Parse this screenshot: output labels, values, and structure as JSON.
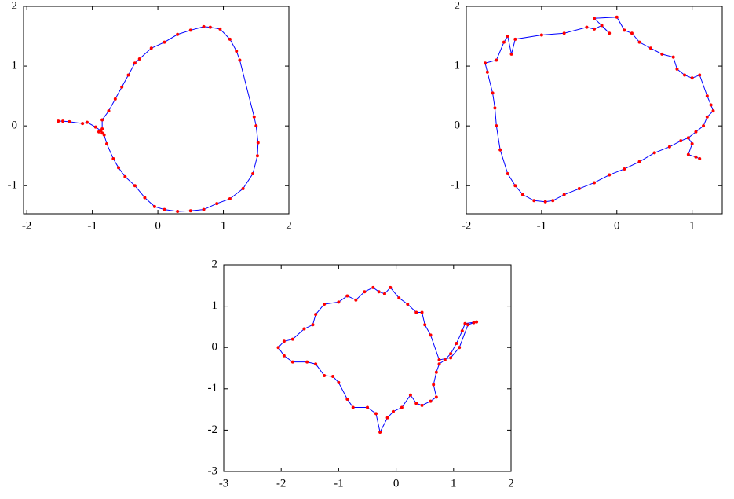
{
  "chart_data": [
    {
      "type": "line",
      "color": "#0000ff",
      "marker_color": "#ff0000",
      "xlim": [
        -2.05,
        2
      ],
      "ylim": [
        -1.47,
        2
      ],
      "xticks": [
        -2,
        -1,
        0,
        1,
        2
      ],
      "yticks": [
        -1,
        0,
        1,
        2
      ],
      "x": [
        -1.52,
        -1.45,
        -1.35,
        -1.15,
        -1.08,
        -0.95,
        -0.87,
        -0.85,
        -0.82,
        -0.78,
        -0.68,
        -0.6,
        -0.5,
        -0.35,
        -0.2,
        -0.05,
        0.1,
        0.3,
        0.5,
        0.7,
        0.9,
        1.1,
        1.3,
        1.45,
        1.52,
        1.53,
        1.5,
        1.47,
        1.25,
        1.2,
        1.1,
        0.95,
        0.8,
        0.7,
        0.5,
        0.3,
        0.1,
        -0.1,
        -0.28,
        -0.35,
        -0.45,
        -0.55,
        -0.65,
        -0.75,
        -0.85,
        -0.85,
        -0.9
      ],
      "values": [
        0.08,
        0.08,
        0.07,
        0.04,
        0.06,
        -0.02,
        -0.08,
        -0.12,
        -0.15,
        -0.3,
        -0.55,
        -0.7,
        -0.85,
        -1.0,
        -1.2,
        -1.35,
        -1.4,
        -1.43,
        -1.42,
        -1.4,
        -1.3,
        -1.22,
        -1.05,
        -0.8,
        -0.5,
        -0.28,
        0.0,
        0.15,
        1.1,
        1.25,
        1.45,
        1.62,
        1.65,
        1.66,
        1.6,
        1.53,
        1.4,
        1.3,
        1.12,
        1.05,
        0.85,
        0.65,
        0.45,
        0.25,
        0.1,
        -0.05,
        -0.1
      ]
    },
    {
      "type": "line",
      "color": "#0000ff",
      "marker_color": "#ff0000",
      "xlim": [
        -2,
        1.4
      ],
      "ylim": [
        -1.47,
        2
      ],
      "xticks": [
        -2,
        -1,
        0,
        1
      ],
      "yticks": [
        -1,
        0,
        1,
        2
      ],
      "x": [
        1.1,
        1.05,
        0.95,
        1.0,
        0.95,
        0.85,
        0.7,
        0.5,
        0.3,
        0.1,
        -0.1,
        -0.3,
        -0.5,
        -0.7,
        -0.85,
        -0.95,
        -1.1,
        -1.25,
        -1.35,
        -1.45,
        -1.55,
        -1.6,
        -1.62,
        -1.65,
        -1.72,
        -1.75,
        -1.6,
        -1.5,
        -1.45,
        -1.4,
        -1.35,
        -1.0,
        -0.7,
        -0.4,
        -0.3,
        -0.2,
        -0.1,
        -0.3,
        0.0,
        0.1,
        0.2,
        0.3,
        0.45,
        0.6,
        0.75,
        0.8,
        0.9,
        1.0,
        1.1,
        1.2,
        1.25,
        1.28,
        1.2,
        1.15,
        1.05,
        0.95
      ],
      "values": [
        -0.55,
        -0.52,
        -0.48,
        -0.3,
        -0.2,
        -0.25,
        -0.35,
        -0.45,
        -0.6,
        -0.72,
        -0.82,
        -0.95,
        -1.05,
        -1.15,
        -1.25,
        -1.27,
        -1.25,
        -1.15,
        -1.0,
        -0.8,
        -0.4,
        0.0,
        0.3,
        0.55,
        0.9,
        1.05,
        1.1,
        1.4,
        1.5,
        1.2,
        1.45,
        1.52,
        1.55,
        1.65,
        1.62,
        1.68,
        1.55,
        1.8,
        1.82,
        1.6,
        1.55,
        1.4,
        1.3,
        1.2,
        1.15,
        0.95,
        0.85,
        0.8,
        0.85,
        0.5,
        0.35,
        0.25,
        0.15,
        0.0,
        -0.1,
        -0.2
      ]
    },
    {
      "type": "line",
      "color": "#0000ff",
      "marker_color": "#ff0000",
      "xlim": [
        -3,
        2
      ],
      "ylim": [
        -3,
        2
      ],
      "xticks": [
        -3,
        -2,
        -1,
        0,
        1,
        2
      ],
      "yticks": [
        -3,
        -2,
        -1,
        0,
        1,
        2
      ],
      "x": [
        1.4,
        1.2,
        1.15,
        1.05,
        0.95,
        0.85,
        0.75,
        0.7,
        0.65,
        0.7,
        0.6,
        0.45,
        0.35,
        0.25,
        0.1,
        -0.05,
        -0.15,
        -0.28,
        -0.35,
        -0.5,
        -0.75,
        -0.85,
        -1.0,
        -1.1,
        -1.25,
        -1.4,
        -1.55,
        -1.8,
        -1.95,
        -2.05,
        -1.95,
        -1.8,
        -1.6,
        -1.45,
        -1.4,
        -1.25,
        -1.0,
        -0.85,
        -0.7,
        -0.55,
        -0.4,
        -0.3,
        -0.2,
        -0.1,
        0.05,
        0.2,
        0.35,
        0.45,
        0.5,
        0.6,
        0.75,
        0.95,
        1.1,
        1.25,
        1.35
      ],
      "values": [
        0.62,
        0.58,
        0.4,
        0.1,
        -0.15,
        -0.3,
        -0.4,
        -0.6,
        -0.9,
        -1.2,
        -1.3,
        -1.4,
        -1.35,
        -1.15,
        -1.45,
        -1.55,
        -1.7,
        -2.05,
        -1.6,
        -1.45,
        -1.45,
        -1.25,
        -0.85,
        -0.7,
        -0.68,
        -0.4,
        -0.35,
        -0.35,
        -0.2,
        0.0,
        0.15,
        0.2,
        0.45,
        0.55,
        0.8,
        1.05,
        1.1,
        1.25,
        1.15,
        1.35,
        1.45,
        1.35,
        1.3,
        1.45,
        1.2,
        1.05,
        0.85,
        0.85,
        0.55,
        0.3,
        -0.3,
        -0.25,
        0.0,
        0.55,
        0.6
      ]
    }
  ]
}
